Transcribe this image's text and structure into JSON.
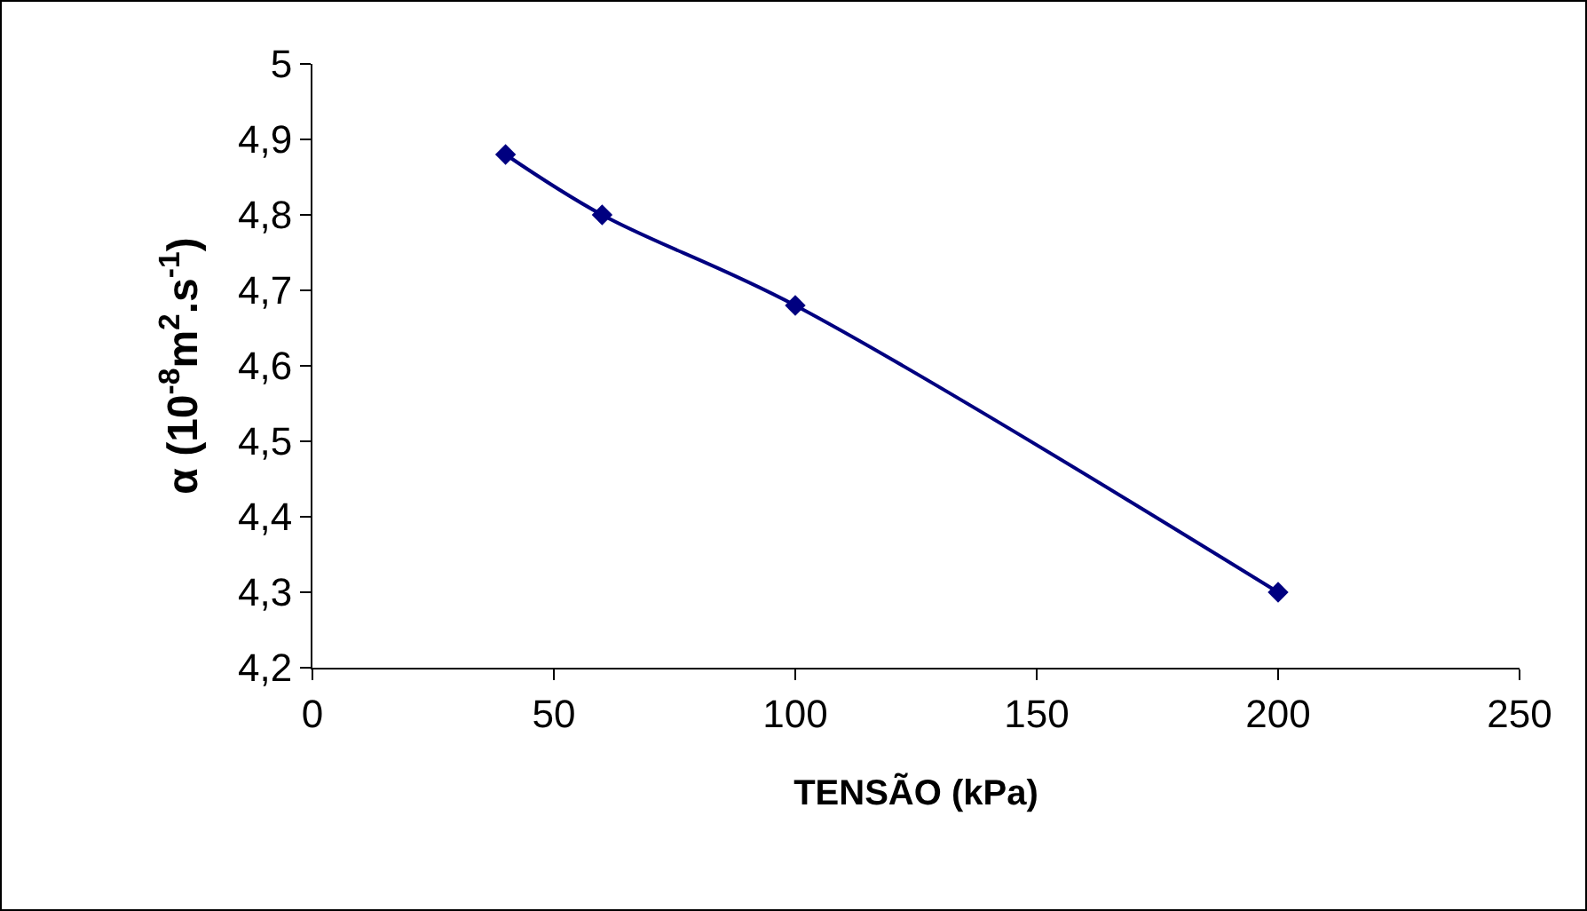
{
  "chart_data": {
    "type": "line",
    "xlabel": "TENSÃO (kPa)",
    "ylabel": "α (10$^{-8}$m$^{2}$.s$^{-1}$)",
    "x": [
      40,
      60,
      100,
      200
    ],
    "series": [
      {
        "color": "#000080",
        "values": [
          4.88,
          4.8,
          4.68,
          4.3
        ]
      }
    ],
    "xlim": [
      0,
      250
    ],
    "xticks": [
      0,
      50,
      100,
      150,
      200,
      250
    ],
    "ylim": [
      4.2,
      5
    ],
    "yticks": [
      {
        "value": 4.2,
        "label": "4,2"
      },
      {
        "value": 4.3,
        "label": "4,3"
      },
      {
        "value": 4.4,
        "label": "4,4"
      },
      {
        "value": 4.5,
        "label": "4,5"
      },
      {
        "value": 4.6,
        "label": "4,6"
      },
      {
        "value": 4.7,
        "label": "4,7"
      },
      {
        "value": 4.8,
        "label": "4,8"
      },
      {
        "value": 4.9,
        "label": "4,9"
      },
      5
    ],
    "grid": false,
    "marker": "diamond",
    "line_style": "solid"
  }
}
